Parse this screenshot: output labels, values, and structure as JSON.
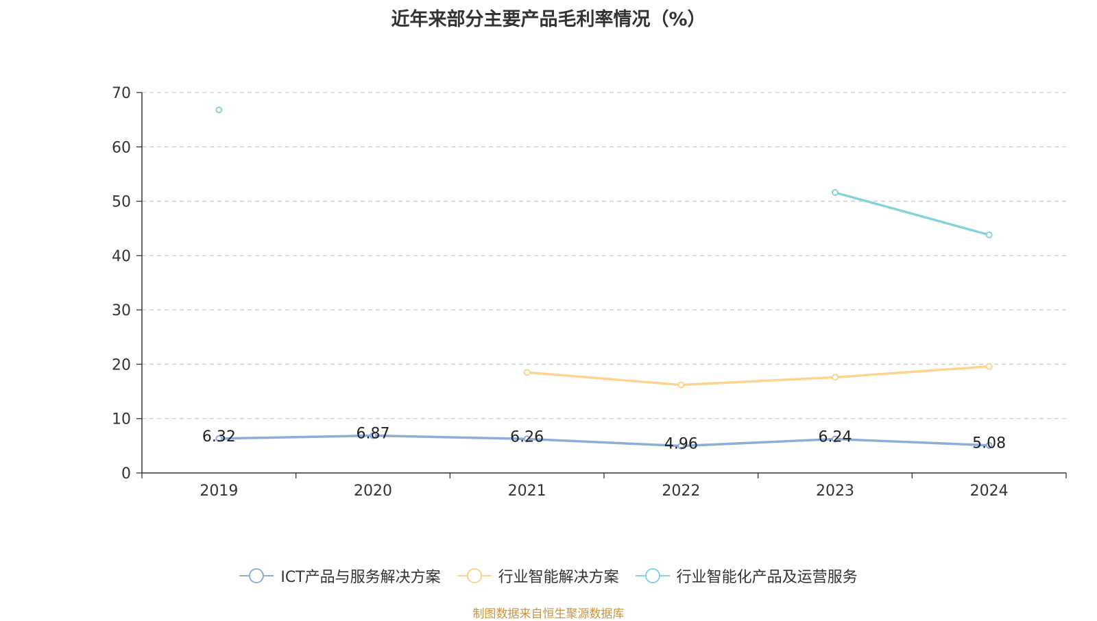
{
  "title": "近年来部分主要产品毛利率情况（%）",
  "source": "制图数据来自恒生聚源数据库",
  "source_color": "#c8963e",
  "chart_data": {
    "type": "line",
    "title": "近年来部分主要产品毛利率情况（%）",
    "xlabel": "",
    "ylabel": "",
    "categories": [
      "2019",
      "2020",
      "2021",
      "2022",
      "2023",
      "2024"
    ],
    "ylim": [
      0,
      70
    ],
    "yticks": [
      0,
      10,
      20,
      30,
      40,
      50,
      60,
      70
    ],
    "grid": true,
    "legend_position": "bottom",
    "series": [
      {
        "name": "ICT产品与服务解决方案",
        "color": "#8eacd8",
        "values": [
          6.32,
          6.87,
          6.26,
          4.96,
          6.24,
          5.08
        ],
        "show_labels": true
      },
      {
        "name": "行业智能解决方案",
        "color": "#fcd48f",
        "values": [
          null,
          null,
          18.5,
          16.2,
          17.6,
          19.6
        ],
        "show_labels": false
      },
      {
        "name": "行业智能化产品及运营服务",
        "color": "#86d3d7",
        "values": [
          66.8,
          null,
          null,
          null,
          51.6,
          43.8
        ],
        "show_labels": false
      }
    ]
  }
}
